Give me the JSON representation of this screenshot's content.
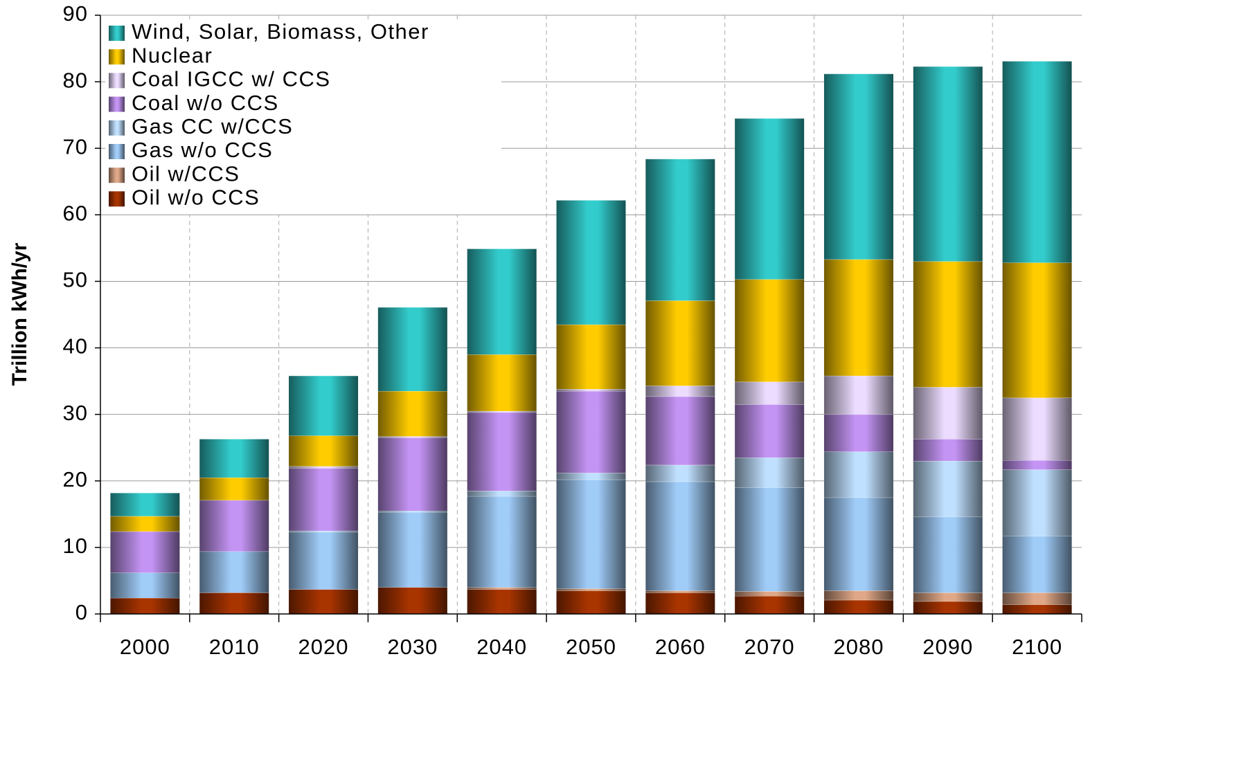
{
  "chart_data": {
    "type": "stacked_bar",
    "y_label": "Trillion kWh/yr",
    "categories": [
      "2000",
      "2010",
      "2020",
      "2030",
      "2040",
      "2050",
      "2060",
      "2070",
      "2080",
      "2090",
      "2100"
    ],
    "series": [
      {
        "name": "Oil w/o CCS",
        "color": "#a83400",
        "values": [
          2.4,
          3.2,
          3.7,
          4.0,
          3.7,
          3.5,
          3.2,
          2.7,
          2.1,
          1.9,
          1.4
        ]
      },
      {
        "name": "Oil w/CCS",
        "color": "#e0a888",
        "values": [
          0,
          0,
          0,
          0,
          0.3,
          0.3,
          0.3,
          0.7,
          1.4,
          1.3,
          1.8
        ]
      },
      {
        "name": "Gas w/o CCS",
        "color": "#a0ccf8",
        "values": [
          3.8,
          6.2,
          8.6,
          11.3,
          13.7,
          16.4,
          16.4,
          15.6,
          14.0,
          11.4,
          8.5
        ]
      },
      {
        "name": "Gas CC w/CCS",
        "color": "#c0e0ff",
        "values": [
          0,
          0,
          0.2,
          0.2,
          0.8,
          1.0,
          2.5,
          4.5,
          6.9,
          8.4,
          10.0
        ]
      },
      {
        "name": "Coal w/o CCS",
        "color": "#c494f4",
        "values": [
          6.2,
          7.7,
          9.4,
          11.0,
          11.8,
          12.3,
          10.3,
          8.0,
          5.6,
          3.3,
          1.4
        ]
      },
      {
        "name": "Coal IGCC w/ CCS",
        "color": "#ecdcff",
        "values": [
          0,
          0,
          0.3,
          0.2,
          0.2,
          0.3,
          1.6,
          3.4,
          5.8,
          7.8,
          9.4
        ]
      },
      {
        "name": "Nuclear",
        "color": "#ffcc00",
        "values": [
          2.3,
          3.4,
          4.6,
          6.8,
          8.5,
          9.7,
          12.8,
          15.4,
          17.5,
          18.9,
          20.3
        ]
      },
      {
        "name": "Wind, Solar, Biomass, Other",
        "color": "#33cccc",
        "values": [
          3.5,
          5.8,
          9.0,
          12.6,
          15.9,
          18.7,
          21.3,
          24.2,
          27.9,
          29.3,
          30.3
        ]
      }
    ],
    "ylim": [
      0,
      90
    ],
    "yticks": [
      0,
      10,
      20,
      30,
      40,
      50,
      60,
      70,
      80,
      90
    ],
    "grid": true,
    "legend": "upper left"
  }
}
